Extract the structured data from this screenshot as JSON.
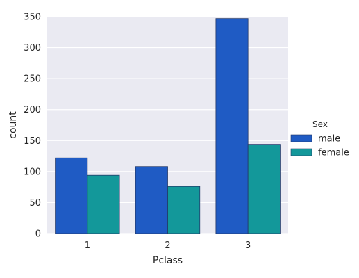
{
  "chart_data": {
    "type": "bar",
    "title": "",
    "xlabel": "Pclass",
    "ylabel": "count",
    "categories": [
      "1",
      "2",
      "3"
    ],
    "ylim": [
      0,
      350
    ],
    "yticks": [
      0,
      50,
      100,
      150,
      200,
      250,
      300,
      350
    ],
    "grid": true,
    "legend": {
      "title": "Sex",
      "placement": "right"
    },
    "series": [
      {
        "name": "male",
        "color": "#1f5bc4",
        "values": [
          122,
          108,
          347
        ]
      },
      {
        "name": "female",
        "color": "#13989a",
        "values": [
          94,
          76,
          144
        ]
      }
    ]
  }
}
